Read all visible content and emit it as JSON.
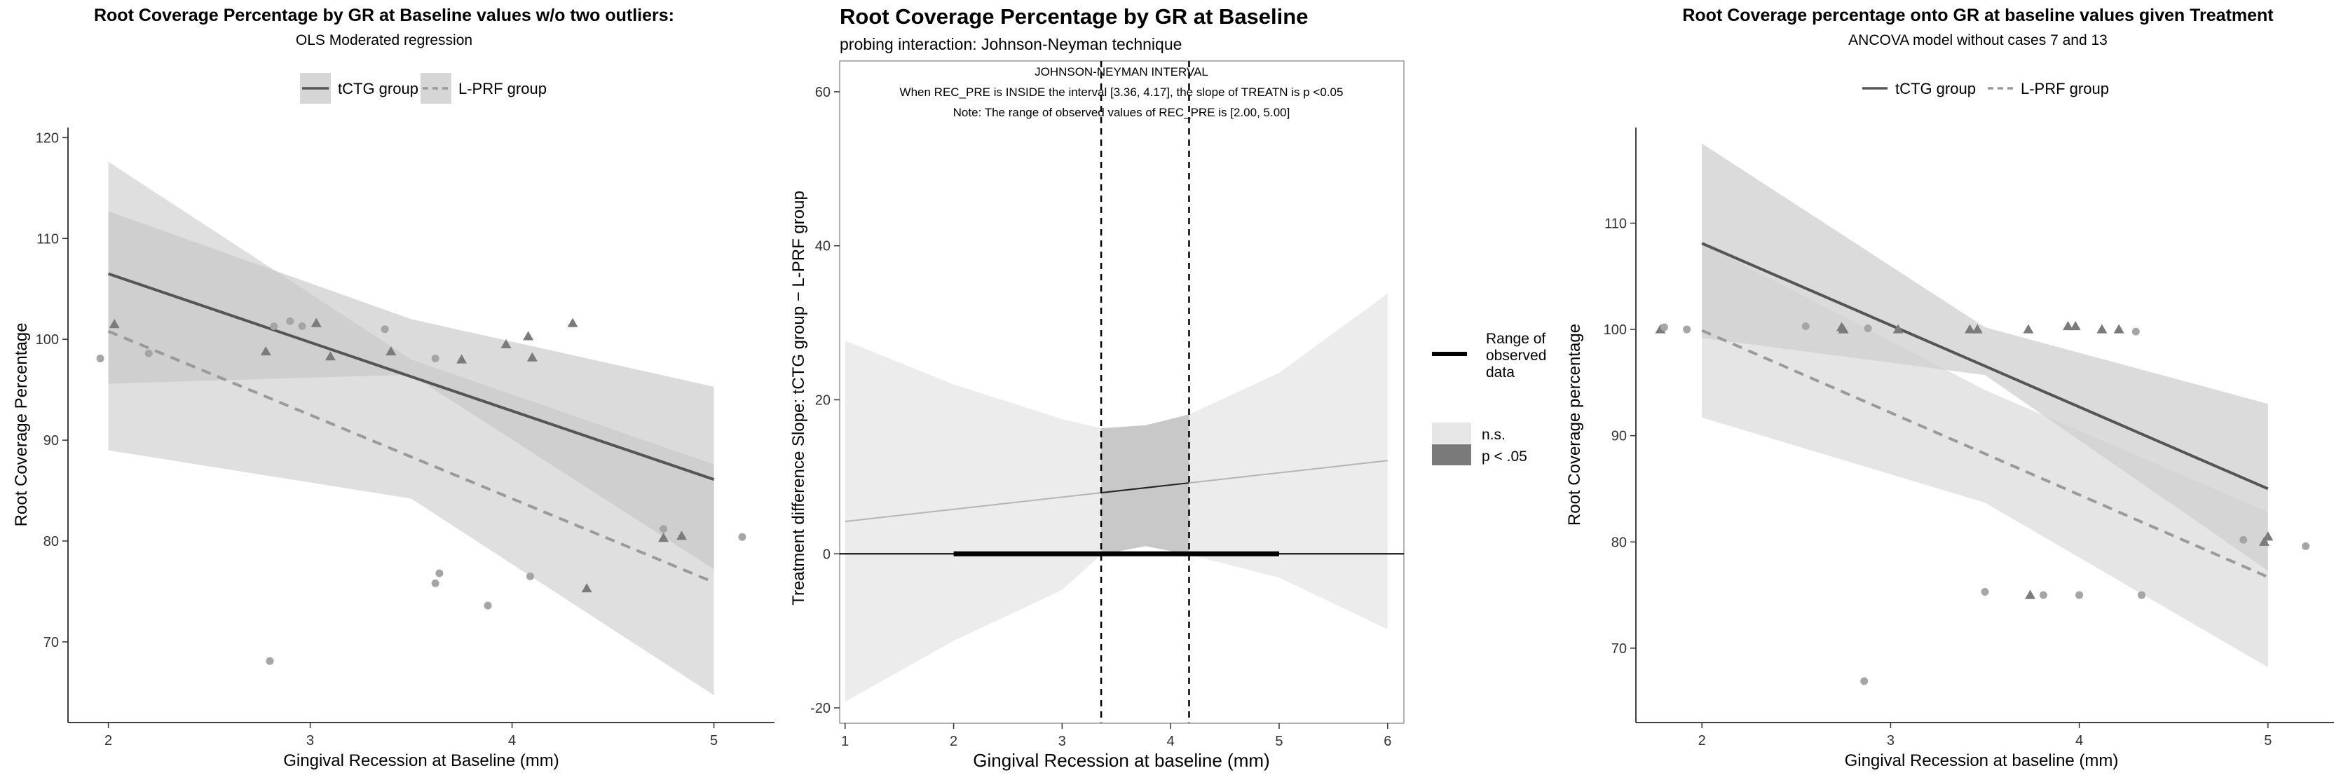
{
  "chart_data": [
    {
      "type": "scatter",
      "title": "Root Coverage Percentage by GR at Baseline values w/o two outliers:",
      "subtitle": "OLS Moderated regression",
      "xlabel": "Gingival Recession at Baseline (mm)",
      "ylabel": "Root Coverage Percentage",
      "xlim": [
        1.8,
        5.3
      ],
      "ylim": [
        62,
        121
      ],
      "xticks": [
        "2",
        "3",
        "4",
        "5"
      ],
      "yticks": [
        "70",
        "80",
        "90",
        "100",
        "110",
        "120"
      ],
      "legend": {
        "position": "top",
        "entries": [
          "tCTG group",
          "L-PRF group"
        ]
      },
      "series": [
        {
          "name": "tCTG group",
          "marker": "triangle",
          "line": {
            "x": [
              2.0,
              5.0
            ],
            "y": [
              106.5,
              86.1
            ]
          },
          "band": {
            "x": [
              2.0,
              3.5,
              5.0
            ],
            "upper": [
              112.7,
              102.0,
              95.3
            ],
            "lower": [
              95.6,
              96.5,
              77.2
            ]
          },
          "points": [
            [
              2.03,
              101.5
            ],
            [
              2.78,
              98.8
            ],
            [
              3.03,
              101.6
            ],
            [
              3.1,
              98.3
            ],
            [
              3.4,
              98.8
            ],
            [
              3.75,
              98.0
            ],
            [
              3.97,
              99.5
            ],
            [
              4.08,
              100.3
            ],
            [
              4.1,
              98.2
            ],
            [
              4.3,
              101.6
            ],
            [
              4.37,
              75.3
            ],
            [
              4.75,
              80.3
            ],
            [
              4.84,
              80.5
            ]
          ]
        },
        {
          "name": "L-PRF group",
          "marker": "circle",
          "line": {
            "x": [
              2.0,
              5.0
            ],
            "y": [
              100.8,
              75.9
            ]
          },
          "band": {
            "x": [
              2.0,
              3.5,
              5.0
            ],
            "upper": [
              117.6,
              98.0,
              87.6
            ],
            "lower": [
              89.0,
              84.2,
              64.7
            ]
          },
          "points": [
            [
              1.96,
              98.1
            ],
            [
              2.2,
              98.6
            ],
            [
              2.8,
              68.1
            ],
            [
              2.82,
              101.3
            ],
            [
              2.9,
              101.8
            ],
            [
              2.96,
              101.3
            ],
            [
              3.37,
              101.0
            ],
            [
              3.62,
              98.1
            ],
            [
              3.62,
              75.8
            ],
            [
              3.64,
              76.8
            ],
            [
              3.88,
              73.6
            ],
            [
              4.09,
              76.5
            ],
            [
              4.75,
              81.2
            ],
            [
              5.14,
              80.4
            ]
          ]
        }
      ]
    },
    {
      "type": "line",
      "title": "Root Coverage Percentage by GR at Baseline",
      "subtitle": "probing interaction: Johnson-Neyman technique",
      "xlabel": "Gingival Recession at baseline (mm)",
      "ylabel": "Treatment difference Slope: tCTG group − L-PRF group",
      "xlim": [
        0.95,
        6.15
      ],
      "ylim": [
        -22,
        64
      ],
      "xticks": [
        "1",
        "2",
        "3",
        "4",
        "5",
        "6"
      ],
      "yticks": [
        "-20",
        "0",
        "20",
        "40",
        "60"
      ],
      "annotation": [
        "JOHNSON-NEYMAN INTERVAL",
        "When REC_PRE is INSIDE the interval [3.36, 4.17], the slope of TREATN is p <0.05",
        "Note: The range of observed values of REC_PRE is [2.00, 5.00]"
      ],
      "jn_interval": [
        3.36,
        4.17
      ],
      "observed_range": [
        2.0,
        5.0
      ],
      "slope_line": {
        "x": [
          1.0,
          6.0
        ],
        "y": [
          4.2,
          12.1
        ]
      },
      "band": {
        "x": [
          1.0,
          2.0,
          3.0,
          3.36,
          3.77,
          4.17,
          5.0,
          6.0
        ],
        "upper": [
          27.7,
          22.0,
          17.5,
          16.3,
          16.7,
          18.1,
          23.5,
          33.8
        ],
        "lower": [
          -19.2,
          -11.3,
          -4.7,
          -0.1,
          1.0,
          -0.1,
          -3.1,
          -9.8
        ]
      },
      "legend": {
        "position": "right",
        "range_label": "Range of observed data",
        "range_label_lines": [
          "Range of",
          "observed",
          "data"
        ],
        "fill_entries": [
          "n.s.",
          "p < .05"
        ]
      }
    },
    {
      "type": "scatter",
      "title": "Root Coverage percentage onto GR at baseline values given Treatment",
      "subtitle": "ANCOVA model without cases 7 and 13",
      "xlabel": "Gingival Recession at baseline (mm)",
      "ylabel": "Root Coverage percentage",
      "xlim": [
        1.65,
        5.35
      ],
      "ylim": [
        63,
        119
      ],
      "xticks": [
        "2",
        "3",
        "4",
        "5"
      ],
      "yticks": [
        "70",
        "80",
        "90",
        "100",
        "110"
      ],
      "legend": {
        "position": "top",
        "entries": [
          "tCTG group",
          "L-PRF group"
        ]
      },
      "series": [
        {
          "name": "tCTG group",
          "marker": "triangle",
          "line": {
            "x": [
              2.0,
              5.0
            ],
            "y": [
              108.1,
              85.0
            ]
          },
          "band": {
            "x": [
              2.0,
              3.5,
              5.0
            ],
            "upper": [
              117.5,
              100.2,
              93.0
            ],
            "lower": [
              99.2,
              95.7,
              77.3
            ]
          },
          "points": [
            [
              1.78,
              100.0
            ],
            [
              2.74,
              100.2
            ],
            [
              2.75,
              100.0
            ],
            [
              3.04,
              100.0
            ],
            [
              3.42,
              100.0
            ],
            [
              3.46,
              100.0
            ],
            [
              3.73,
              100.0
            ],
            [
              3.74,
              75.0
            ],
            [
              3.94,
              100.3
            ],
            [
              3.98,
              100.3
            ],
            [
              4.12,
              100.0
            ],
            [
              4.21,
              100.0
            ],
            [
              4.98,
              80.0
            ],
            [
              5.0,
              80.5
            ]
          ]
        },
        {
          "name": "L-PRF group",
          "marker": "circle",
          "line": {
            "x": [
              2.0,
              5.0
            ],
            "y": [
              99.9,
              76.7
            ]
          },
          "band": {
            "x": [
              2.0,
              3.5,
              5.0
            ],
            "upper": [
              108.1,
              94.3,
              82.8
            ],
            "lower": [
              91.7,
              83.7,
              68.2
            ]
          },
          "points": [
            [
              1.8,
              100.2
            ],
            [
              1.92,
              100.0
            ],
            [
              2.55,
              100.3
            ],
            [
              2.86,
              66.9
            ],
            [
              2.88,
              100.1
            ],
            [
              3.5,
              75.3
            ],
            [
              3.81,
              75.0
            ],
            [
              4.0,
              75.0
            ],
            [
              4.3,
              99.8
            ],
            [
              4.33,
              75.0
            ],
            [
              4.87,
              80.2
            ],
            [
              5.2,
              79.6
            ]
          ]
        }
      ]
    }
  ]
}
